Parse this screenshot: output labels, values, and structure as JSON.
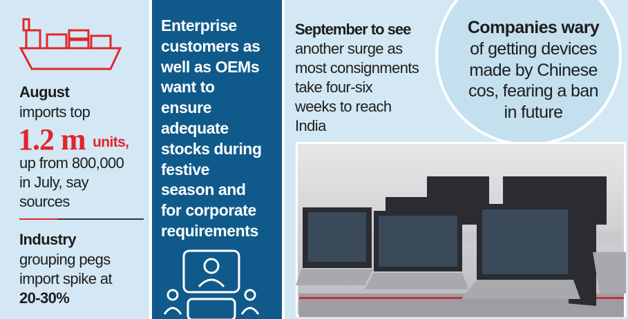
{
  "left": {
    "lead": "August",
    "intro": "imports top",
    "figure": "1.2 m",
    "unit": "units,",
    "lines": [
      "up from 800,000",
      "in July, say",
      "sources"
    ],
    "lead2": "Industry",
    "lines2": [
      "grouping pegs",
      "import spike at"
    ],
    "stat": "20-30%"
  },
  "middle": {
    "lines": [
      "Enterprise",
      "customers as",
      "well as OEMs",
      "want to",
      "ensure",
      "adequate",
      "stocks during",
      "festive",
      "season and",
      "for corporate",
      "requirements"
    ]
  },
  "right": {
    "lead": "September to see",
    "lines": [
      "another surge as",
      "most consignments",
      "take four-six",
      "weeks to reach",
      "India"
    ]
  },
  "callout": {
    "lead": "Companies wary",
    "lines": [
      "of getting devices",
      "made by Chinese",
      "cos, fearing a ban",
      "in future"
    ]
  }
}
